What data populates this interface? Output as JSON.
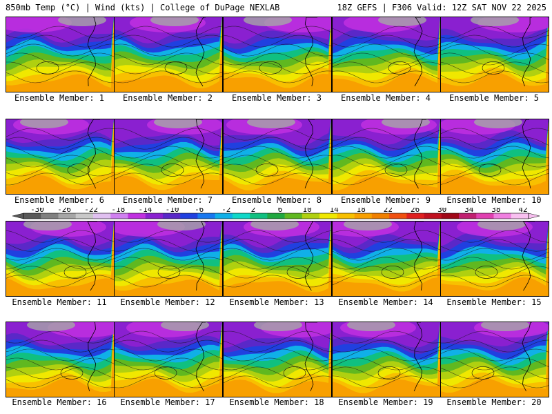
{
  "header": {
    "left": "850mb Temp (°C) | Wind (kts) | College of DuPage NEXLAB",
    "right": "18Z GEFS | F306 Valid: 12Z SAT NOV 22 2025"
  },
  "members": [
    "Ensemble Member: 1",
    "Ensemble Member: 2",
    "Ensemble Member: 3",
    "Ensemble Member: 4",
    "Ensemble Member: 5",
    "Ensemble Member: 6",
    "Ensemble Member: 7",
    "Ensemble Member: 8",
    "Ensemble Member: 9",
    "Ensemble Member: 10",
    "Ensemble Member: 11",
    "Ensemble Member: 12",
    "Ensemble Member: 13",
    "Ensemble Member: 14",
    "Ensemble Member: 15",
    "Ensemble Member: 16",
    "Ensemble Member: 17",
    "Ensemble Member: 18",
    "Ensemble Member: 19",
    "Ensemble Member: 20"
  ],
  "colorbar": {
    "ticks": [
      "-30",
      "-26",
      "-22",
      "-18",
      "-14",
      "-10",
      "-6",
      "-2",
      "2",
      "6",
      "10",
      "14",
      "18",
      "22",
      "26",
      "30",
      "34",
      "38",
      "42"
    ],
    "colors": [
      "#595959",
      "#808080",
      "#a6a6a6",
      "#c8c8c8",
      "#e0c0f0",
      "#d080f0",
      "#c030e0",
      "#8a20d0",
      "#5a28c8",
      "#2040e0",
      "#1878f0",
      "#10b0e8",
      "#10d8c8",
      "#10c080",
      "#20a840",
      "#60b820",
      "#b0d010",
      "#f0e800",
      "#f8c000",
      "#f8a000",
      "#f08000",
      "#f05010",
      "#e02020",
      "#c01020",
      "#a00818",
      "#c02070",
      "#e040b0",
      "#f080e0",
      "#f8c0f0"
    ]
  },
  "theme": {
    "cold_band": [
      "#8a20d0",
      "#5a28c8",
      "#2040e0",
      "#10b0e8",
      "#10c080",
      "#60b820"
    ],
    "warm_band": [
      "#b0d010",
      "#f0e800",
      "#f8c000",
      "#f8a000"
    ]
  }
}
